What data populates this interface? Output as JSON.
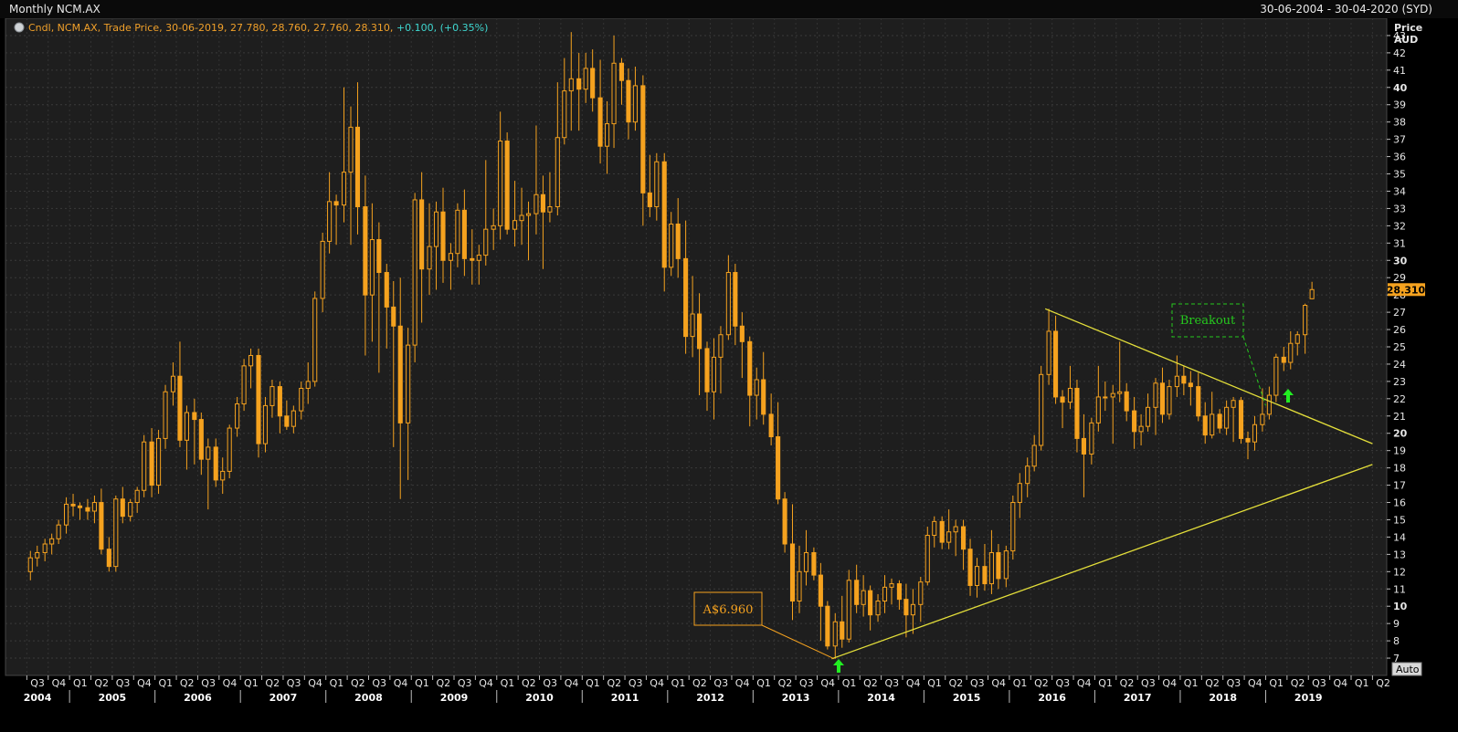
{
  "header": {
    "title": "Monthly NCM.AX",
    "date_range": "30-06-2004 - 30-04-2020 (SYD)"
  },
  "controls": {
    "auto_label": "Auto"
  },
  "colors": {
    "candle": "#f5a21f",
    "trendline": "#e4df3a",
    "breakout": "#26c81e",
    "arrow": "#22ee22",
    "last_price_bg": "#f5a21f"
  },
  "chart_data": {
    "type": "candlestick",
    "title": "Monthly NCM.AX",
    "ylabel": "Price",
    "currency": "AUD",
    "ylim": [
      6,
      44
    ],
    "y_ticks": [
      7,
      8,
      9,
      10,
      11,
      12,
      13,
      14,
      15,
      16,
      17,
      18,
      19,
      20,
      21,
      22,
      23,
      24,
      25,
      26,
      27,
      28,
      29,
      30,
      31,
      32,
      33,
      34,
      35,
      36,
      37,
      38,
      39,
      40,
      41,
      42,
      43
    ],
    "y_ticks_bold": [
      10,
      20,
      30,
      40
    ],
    "last_price": "28.310",
    "legend": {
      "series_text": "Cndl, NCM.AX, Trade Price, 30-06-2019, 27.780, 28.760, 27.760, 28.310, ",
      "change_text": "+0.100, (+0.35%)"
    },
    "quarters": [
      "Q3",
      "Q4",
      "Q1",
      "Q2",
      "Q3",
      "Q4",
      "Q1",
      "Q2",
      "Q3",
      "Q4",
      "Q1",
      "Q2",
      "Q3",
      "Q4",
      "Q1",
      "Q2",
      "Q3",
      "Q4",
      "Q1",
      "Q2",
      "Q3",
      "Q4",
      "Q1",
      "Q2",
      "Q3",
      "Q4",
      "Q1",
      "Q2",
      "Q3",
      "Q4",
      "Q1",
      "Q2",
      "Q3",
      "Q4",
      "Q1",
      "Q2",
      "Q3",
      "Q4",
      "Q1",
      "Q2",
      "Q3",
      "Q4",
      "Q1",
      "Q2",
      "Q3",
      "Q4",
      "Q1",
      "Q2",
      "Q3",
      "Q4",
      "Q1",
      "Q2",
      "Q3",
      "Q4",
      "Q1",
      "Q2",
      "Q3",
      "Q4",
      "Q1",
      "Q2",
      "Q3",
      "Q4",
      "Q1",
      "Q2"
    ],
    "years": [
      "2004",
      "2005",
      "2006",
      "2007",
      "2008",
      "2009",
      "2010",
      "2011",
      "2012",
      "2013",
      "2014",
      "2015",
      "2016",
      "2017",
      "2018",
      "2019"
    ],
    "candles": [
      [
        2004.5,
        12.0,
        13.2,
        11.5,
        12.8
      ],
      [
        2004.58,
        12.8,
        13.5,
        12.3,
        13.1
      ],
      [
        2004.67,
        13.1,
        13.9,
        12.6,
        13.6
      ],
      [
        2004.75,
        13.6,
        14.2,
        13.0,
        13.9
      ],
      [
        2004.83,
        13.9,
        15.0,
        13.6,
        14.7
      ],
      [
        2004.92,
        14.7,
        16.3,
        14.2,
        15.9
      ],
      [
        2005.0,
        15.9,
        16.5,
        15.2,
        15.8
      ],
      [
        2005.08,
        15.8,
        16.0,
        15.0,
        15.7
      ],
      [
        2005.17,
        15.7,
        16.2,
        15.0,
        15.5
      ],
      [
        2005.25,
        15.5,
        16.4,
        14.8,
        16.0
      ],
      [
        2005.33,
        16.0,
        16.8,
        13.0,
        13.3
      ],
      [
        2005.42,
        13.3,
        14.0,
        12.0,
        12.3
      ],
      [
        2005.5,
        12.3,
        16.4,
        12.0,
        16.2
      ],
      [
        2005.58,
        16.2,
        16.9,
        14.8,
        15.2
      ],
      [
        2005.67,
        15.2,
        16.2,
        14.9,
        16.0
      ],
      [
        2005.75,
        16.0,
        16.9,
        15.4,
        16.7
      ],
      [
        2005.83,
        16.7,
        19.9,
        16.3,
        19.5
      ],
      [
        2005.92,
        19.5,
        20.3,
        16.3,
        17.0
      ],
      [
        2006.0,
        17.0,
        20.2,
        16.5,
        19.7
      ],
      [
        2006.08,
        19.7,
        22.8,
        19.1,
        22.4
      ],
      [
        2006.17,
        22.4,
        24.1,
        21.6,
        23.3
      ],
      [
        2006.25,
        23.3,
        25.3,
        19.2,
        19.6
      ],
      [
        2006.33,
        19.6,
        21.6,
        17.9,
        21.2
      ],
      [
        2006.42,
        21.2,
        22.0,
        18.2,
        20.8
      ],
      [
        2006.5,
        20.8,
        21.2,
        17.6,
        18.5
      ],
      [
        2006.58,
        18.5,
        19.7,
        15.6,
        19.2
      ],
      [
        2006.67,
        19.2,
        19.7,
        16.9,
        17.3
      ],
      [
        2006.75,
        17.3,
        18.6,
        16.5,
        17.8
      ],
      [
        2006.83,
        17.8,
        20.5,
        17.4,
        20.3
      ],
      [
        2006.92,
        20.3,
        22.1,
        19.8,
        21.7
      ],
      [
        2007.0,
        21.7,
        24.3,
        21.3,
        23.9
      ],
      [
        2007.08,
        23.9,
        24.9,
        22.6,
        24.5
      ],
      [
        2007.17,
        24.5,
        24.9,
        18.6,
        19.4
      ],
      [
        2007.25,
        19.4,
        22.1,
        18.9,
        21.6
      ],
      [
        2007.33,
        21.6,
        23.1,
        20.9,
        22.7
      ],
      [
        2007.42,
        22.7,
        23.0,
        20.0,
        21.0
      ],
      [
        2007.5,
        21.0,
        21.9,
        20.2,
        20.4
      ],
      [
        2007.58,
        20.4,
        21.6,
        20.0,
        21.3
      ],
      [
        2007.67,
        21.3,
        23.0,
        20.8,
        22.6
      ],
      [
        2007.75,
        22.6,
        24.1,
        21.7,
        23.0
      ],
      [
        2007.83,
        23.0,
        28.2,
        22.7,
        27.8
      ],
      [
        2007.92,
        27.8,
        31.6,
        27.0,
        31.1
      ],
      [
        2008.0,
        31.1,
        35.1,
        30.4,
        33.4
      ],
      [
        2008.08,
        33.4,
        33.8,
        30.9,
        33.2
      ],
      [
        2008.17,
        33.2,
        40.0,
        32.2,
        35.1
      ],
      [
        2008.25,
        35.1,
        38.9,
        30.9,
        37.7
      ],
      [
        2008.33,
        37.7,
        40.3,
        31.5,
        33.1
      ],
      [
        2008.42,
        33.1,
        34.9,
        24.5,
        28.0
      ],
      [
        2008.5,
        28.0,
        33.3,
        25.3,
        31.2
      ],
      [
        2008.58,
        31.2,
        32.2,
        23.5,
        29.3
      ],
      [
        2008.67,
        29.3,
        29.8,
        24.9,
        27.3
      ],
      [
        2008.75,
        27.3,
        28.8,
        19.2,
        26.2
      ],
      [
        2008.83,
        26.2,
        29.0,
        16.2,
        20.6
      ],
      [
        2008.92,
        20.6,
        26.1,
        17.3,
        25.1
      ],
      [
        2009.0,
        25.1,
        33.9,
        24.1,
        33.5
      ],
      [
        2009.08,
        33.5,
        35.1,
        26.4,
        29.5
      ],
      [
        2009.17,
        29.5,
        33.3,
        28.0,
        30.8
      ],
      [
        2009.25,
        30.8,
        33.4,
        28.3,
        32.8
      ],
      [
        2009.33,
        32.8,
        34.2,
        28.7,
        30.0
      ],
      [
        2009.42,
        30.0,
        31.0,
        28.3,
        30.4
      ],
      [
        2009.5,
        30.4,
        33.3,
        29.6,
        32.9
      ],
      [
        2009.58,
        32.9,
        34.1,
        29.1,
        30.1
      ],
      [
        2009.67,
        30.1,
        31.8,
        28.6,
        30.0
      ],
      [
        2009.75,
        30.0,
        30.9,
        28.6,
        30.3
      ],
      [
        2009.83,
        30.3,
        35.8,
        29.7,
        31.8
      ],
      [
        2009.92,
        31.8,
        33.0,
        30.6,
        32.0
      ],
      [
        2010.0,
        32.0,
        38.6,
        31.2,
        36.9
      ],
      [
        2010.08,
        36.9,
        37.4,
        31.5,
        31.8
      ],
      [
        2010.17,
        31.8,
        34.6,
        30.8,
        32.3
      ],
      [
        2010.25,
        32.3,
        34.2,
        30.9,
        32.6
      ],
      [
        2010.33,
        32.6,
        33.4,
        30.0,
        32.7
      ],
      [
        2010.42,
        32.7,
        37.8,
        31.5,
        33.8
      ],
      [
        2010.5,
        33.8,
        34.9,
        29.5,
        32.8
      ],
      [
        2010.58,
        32.8,
        35.1,
        32.2,
        33.1
      ],
      [
        2010.67,
        33.1,
        40.3,
        32.6,
        37.1
      ],
      [
        2010.75,
        37.1,
        41.7,
        36.7,
        39.8
      ],
      [
        2010.83,
        39.8,
        43.2,
        37.5,
        40.5
      ],
      [
        2010.92,
        40.5,
        42.0,
        37.5,
        39.9
      ],
      [
        2011.0,
        39.9,
        42.0,
        39.1,
        41.1
      ],
      [
        2011.08,
        41.1,
        42.2,
        38.6,
        39.4
      ],
      [
        2011.17,
        39.4,
        41.6,
        35.6,
        36.6
      ],
      [
        2011.25,
        36.6,
        39.2,
        35.0,
        37.9
      ],
      [
        2011.33,
        37.9,
        43.0,
        36.5,
        41.4
      ],
      [
        2011.42,
        41.4,
        41.7,
        39.0,
        40.4
      ],
      [
        2011.5,
        40.4,
        41.1,
        37.0,
        38.0
      ],
      [
        2011.58,
        38.0,
        41.2,
        37.5,
        40.1
      ],
      [
        2011.67,
        40.1,
        40.7,
        32.0,
        33.9
      ],
      [
        2011.75,
        33.9,
        36.1,
        32.5,
        33.1
      ],
      [
        2011.83,
        33.1,
        36.2,
        32.3,
        35.7
      ],
      [
        2011.92,
        35.7,
        36.2,
        28.2,
        29.6
      ],
      [
        2012.0,
        29.6,
        32.8,
        29.1,
        32.1
      ],
      [
        2012.08,
        32.1,
        33.6,
        29.0,
        30.1
      ],
      [
        2012.17,
        30.1,
        32.3,
        24.6,
        25.6
      ],
      [
        2012.25,
        25.6,
        29.1,
        24.4,
        26.9
      ],
      [
        2012.33,
        26.9,
        28.1,
        22.2,
        24.9
      ],
      [
        2012.42,
        24.9,
        25.3,
        21.3,
        22.4
      ],
      [
        2012.5,
        22.4,
        25.5,
        20.8,
        24.4
      ],
      [
        2012.58,
        24.4,
        26.2,
        22.3,
        25.7
      ],
      [
        2012.67,
        25.7,
        30.3,
        25.4,
        29.3
      ],
      [
        2012.75,
        29.3,
        29.8,
        25.1,
        26.2
      ],
      [
        2012.83,
        26.2,
        27.0,
        23.2,
        25.3
      ],
      [
        2012.92,
        25.3,
        25.6,
        20.4,
        22.2
      ],
      [
        2013.0,
        22.2,
        23.8,
        20.8,
        23.1
      ],
      [
        2013.08,
        23.1,
        24.7,
        20.5,
        21.1
      ],
      [
        2013.17,
        21.1,
        22.3,
        19.3,
        19.8
      ],
      [
        2013.25,
        19.8,
        21.8,
        15.9,
        16.2
      ],
      [
        2013.33,
        16.2,
        16.6,
        13.1,
        13.6
      ],
      [
        2013.42,
        13.6,
        15.9,
        9.2,
        10.3
      ],
      [
        2013.5,
        10.3,
        13.5,
        9.6,
        12.0
      ],
      [
        2013.58,
        12.0,
        14.4,
        11.2,
        13.1
      ],
      [
        2013.67,
        13.1,
        13.4,
        11.5,
        11.8
      ],
      [
        2013.75,
        11.8,
        12.5,
        8.0,
        10.0
      ],
      [
        2013.83,
        10.0,
        10.3,
        7.5,
        7.7
      ],
      [
        2013.92,
        7.7,
        9.6,
        6.96,
        9.1
      ],
      [
        2014.0,
        9.1,
        10.6,
        7.6,
        8.1
      ],
      [
        2014.08,
        8.1,
        12.1,
        7.9,
        11.5
      ],
      [
        2014.17,
        11.5,
        12.4,
        9.6,
        10.1
      ],
      [
        2014.25,
        10.1,
        11.8,
        9.4,
        10.9
      ],
      [
        2014.33,
        10.9,
        11.2,
        8.6,
        9.5
      ],
      [
        2014.42,
        9.5,
        10.7,
        9.1,
        10.3
      ],
      [
        2014.5,
        10.3,
        11.8,
        9.6,
        11.1
      ],
      [
        2014.58,
        11.1,
        11.6,
        10.1,
        11.3
      ],
      [
        2014.67,
        11.3,
        11.5,
        9.8,
        10.4
      ],
      [
        2014.75,
        10.4,
        11.3,
        8.2,
        9.5
      ],
      [
        2014.83,
        9.5,
        11.0,
        8.4,
        10.1
      ],
      [
        2014.92,
        10.1,
        11.7,
        9.1,
        11.4
      ],
      [
        2015.0,
        11.4,
        14.6,
        11.2,
        14.1
      ],
      [
        2015.08,
        14.1,
        15.2,
        13.4,
        14.9
      ],
      [
        2015.17,
        14.9,
        15.2,
        13.3,
        13.7
      ],
      [
        2015.25,
        13.7,
        15.6,
        13.3,
        14.3
      ],
      [
        2015.33,
        14.3,
        15.0,
        12.9,
        14.6
      ],
      [
        2015.42,
        14.6,
        15.0,
        12.1,
        13.3
      ],
      [
        2015.5,
        13.3,
        13.9,
        10.6,
        11.2
      ],
      [
        2015.58,
        11.2,
        12.8,
        10.5,
        12.3
      ],
      [
        2015.67,
        12.3,
        13.6,
        10.9,
        11.3
      ],
      [
        2015.75,
        11.3,
        14.4,
        10.7,
        13.1
      ],
      [
        2015.83,
        13.1,
        13.6,
        11.0,
        11.6
      ],
      [
        2015.92,
        11.6,
        13.5,
        11.1,
        13.2
      ],
      [
        2016.0,
        13.2,
        16.4,
        12.7,
        16.0
      ],
      [
        2016.08,
        16.0,
        17.7,
        15.1,
        17.1
      ],
      [
        2016.17,
        17.1,
        18.6,
        16.3,
        18.1
      ],
      [
        2016.25,
        18.1,
        19.9,
        17.8,
        19.3
      ],
      [
        2016.33,
        19.3,
        23.9,
        19.0,
        23.4
      ],
      [
        2016.42,
        23.4,
        27.2,
        22.8,
        25.9
      ],
      [
        2016.5,
        25.9,
        26.8,
        21.7,
        22.1
      ],
      [
        2016.58,
        22.1,
        22.5,
        20.3,
        21.8
      ],
      [
        2016.67,
        21.8,
        23.9,
        21.4,
        22.6
      ],
      [
        2016.75,
        22.6,
        23.1,
        18.9,
        19.7
      ],
      [
        2016.83,
        19.7,
        21.1,
        16.3,
        18.8
      ],
      [
        2016.92,
        18.8,
        20.9,
        18.2,
        20.6
      ],
      [
        2017.0,
        20.6,
        23.9,
        20.1,
        22.1
      ],
      [
        2017.08,
        22.1,
        23.0,
        21.3,
        22.1
      ],
      [
        2017.17,
        22.1,
        22.8,
        19.4,
        22.3
      ],
      [
        2017.25,
        22.3,
        25.3,
        21.8,
        22.4
      ],
      [
        2017.33,
        22.4,
        22.9,
        20.7,
        21.3
      ],
      [
        2017.42,
        21.3,
        22.1,
        19.1,
        20.1
      ],
      [
        2017.5,
        20.1,
        21.1,
        19.3,
        20.4
      ],
      [
        2017.58,
        20.4,
        22.3,
        20.1,
        21.5
      ],
      [
        2017.67,
        21.5,
        23.2,
        19.9,
        22.9
      ],
      [
        2017.75,
        22.9,
        23.8,
        20.6,
        21.1
      ],
      [
        2017.83,
        21.1,
        23.1,
        20.8,
        22.7
      ],
      [
        2017.92,
        22.7,
        24.5,
        22.1,
        23.3
      ],
      [
        2018.0,
        23.3,
        23.9,
        22.2,
        22.9
      ],
      [
        2018.08,
        22.9,
        23.6,
        21.6,
        22.7
      ],
      [
        2018.17,
        22.7,
        23.5,
        20.7,
        21.0
      ],
      [
        2018.25,
        21.0,
        21.8,
        19.4,
        19.9
      ],
      [
        2018.33,
        19.9,
        22.4,
        19.7,
        21.1
      ],
      [
        2018.42,
        21.1,
        21.4,
        20.0,
        20.3
      ],
      [
        2018.5,
        20.3,
        21.9,
        19.9,
        21.5
      ],
      [
        2018.58,
        21.5,
        22.1,
        19.5,
        21.9
      ],
      [
        2018.67,
        21.9,
        22.1,
        19.4,
        19.7
      ],
      [
        2018.75,
        19.7,
        20.1,
        18.5,
        19.5
      ],
      [
        2018.83,
        19.5,
        21.0,
        19.0,
        20.5
      ],
      [
        2018.92,
        20.5,
        22.6,
        20.1,
        21.1
      ],
      [
        2019.0,
        21.1,
        22.7,
        20.8,
        22.2
      ],
      [
        2019.08,
        22.2,
        24.6,
        21.8,
        24.4
      ],
      [
        2019.17,
        24.4,
        25.0,
        23.6,
        24.1
      ],
      [
        2019.25,
        24.1,
        25.9,
        23.7,
        25.2
      ],
      [
        2019.33,
        25.2,
        25.9,
        24.5,
        25.7
      ],
      [
        2019.42,
        25.7,
        27.5,
        24.6,
        27.4
      ],
      [
        2019.5,
        27.78,
        28.76,
        27.76,
        28.31
      ]
    ],
    "trendlines": [
      {
        "from": [
          2013.92,
          6.96
        ],
        "to": [
          2020.25,
          18.2
        ]
      },
      {
        "from": [
          2016.42,
          27.2
        ],
        "to": [
          2020.25,
          19.4
        ]
      }
    ],
    "annotations": [
      {
        "text": "A$6.960",
        "color": "#f5a21f"
      },
      {
        "text": "Breakout",
        "color": "#26c81e"
      }
    ]
  }
}
